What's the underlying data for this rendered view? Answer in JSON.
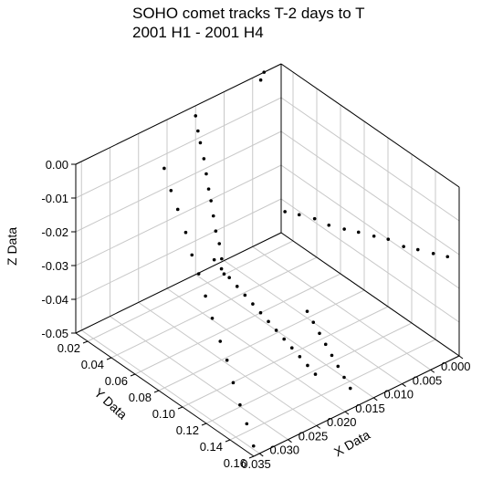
{
  "chart_data": {
    "type": "scatter3d",
    "title": "SOHO comet tracks T-2 days to T",
    "subtitle": "2001 H1 - 2001 H4",
    "x_label": "X Data",
    "y_label": "Y Data",
    "z_label": "Z Data",
    "xlim": [
      0,
      0.036
    ],
    "ylim": [
      0.01,
      0.16
    ],
    "zlim": [
      -0.05,
      0.0
    ],
    "xticks": [
      {
        "value": 0,
        "label": "0.000"
      },
      {
        "value": 0.005,
        "label": "0.005"
      },
      {
        "value": 0.01,
        "label": "0.010"
      },
      {
        "value": 0.015,
        "label": "0.015"
      },
      {
        "value": 0.02,
        "label": "0.020"
      },
      {
        "value": 0.025,
        "label": "0.025"
      },
      {
        "value": 0.03,
        "label": "0.030"
      },
      {
        "value": 0.035,
        "label": "0.035"
      }
    ],
    "yticks": [
      0.02,
      0.04,
      0.06,
      0.08,
      {
        "value": 0.1,
        "label": "0.10"
      },
      0.12,
      0.14,
      {
        "value": 0.16,
        "label": "0.16"
      }
    ],
    "zticks": [
      {
        "value": -0.05,
        "label": "-0.05"
      },
      {
        "value": -0.04,
        "label": "-0.04"
      },
      {
        "value": -0.03,
        "label": "-0.03"
      },
      {
        "value": -0.02,
        "label": "-0.02"
      },
      {
        "value": -0.01,
        "label": "-0.01"
      },
      {
        "value": 0,
        "label": "0.00"
      }
    ],
    "grid": true,
    "color": "#000000",
    "x": [
      0.001,
      0.001,
      0.001,
      0.001,
      0.001,
      0.001,
      0.001,
      0.001,
      0.001,
      0.001,
      0.001,
      0.001,
      0.0134,
      0.014,
      0.0145,
      0.015,
      0.0155,
      0.016,
      0.0165,
      0.017,
      0.0175,
      0.018,
      0.0185,
      0.019,
      0.0195,
      0.02,
      0.01,
      0.011,
      0.012,
      0.013,
      0.014,
      0.015,
      0.016,
      0.017,
      0.015,
      0.015,
      0.015,
      0.015,
      0.015,
      0.015,
      0.015,
      0.015,
      0.015,
      0.015,
      0.015,
      0.015,
      0.0205,
      0.0216,
      0.0227,
      0.0238,
      0.025,
      0.0261,
      0.0272,
      0.0283,
      0.0294,
      0.0305,
      0.0317,
      0.0328,
      0.0339,
      0.035,
      0.003,
      0.004
    ],
    "y": [
      0.018,
      0.03,
      0.043,
      0.055,
      0.068,
      0.08,
      0.093,
      0.105,
      0.118,
      0.13,
      0.143,
      0.155,
      0.018,
      0.027,
      0.036,
      0.045,
      0.054,
      0.063,
      0.072,
      0.081,
      0.09,
      0.099,
      0.108,
      0.117,
      0.126,
      0.135,
      0.08,
      0.09,
      0.1,
      0.11,
      0.12,
      0.13,
      0.14,
      0.15,
      0.01,
      0.012,
      0.014,
      0.017,
      0.019,
      0.021,
      0.023,
      0.025,
      0.027,
      0.03,
      0.032,
      0.034,
      0.01,
      0.021,
      0.032,
      0.044,
      0.055,
      0.066,
      0.077,
      0.088,
      0.1,
      0.111,
      0.122,
      0.133,
      0.144,
      0.155,
      0.01,
      0.012
    ],
    "z": [
      -0.041,
      -0.039,
      -0.037,
      -0.036,
      -0.034,
      -0.032,
      -0.03,
      -0.028,
      -0.027,
      -0.025,
      -0.023,
      -0.021,
      -0.045,
      -0.045,
      -0.045,
      -0.045,
      -0.045,
      -0.045,
      -0.045,
      -0.045,
      -0.045,
      -0.045,
      -0.045,
      -0.045,
      -0.045,
      -0.045,
      -0.048,
      -0.048,
      -0.048,
      -0.048,
      -0.048,
      -0.048,
      -0.048,
      -0.048,
      -0.003,
      -0.007,
      -0.01,
      -0.014,
      -0.018,
      -0.022,
      -0.025,
      -0.029,
      -0.033,
      -0.036,
      -0.04,
      -0.044,
      -0.014,
      -0.017,
      -0.019,
      -0.022,
      -0.025,
      -0.027,
      -0.03,
      -0.033,
      -0.036,
      -0.038,
      -0.041,
      -0.044,
      -0.046,
      -0.049,
      0.0,
      -0.001
    ]
  }
}
